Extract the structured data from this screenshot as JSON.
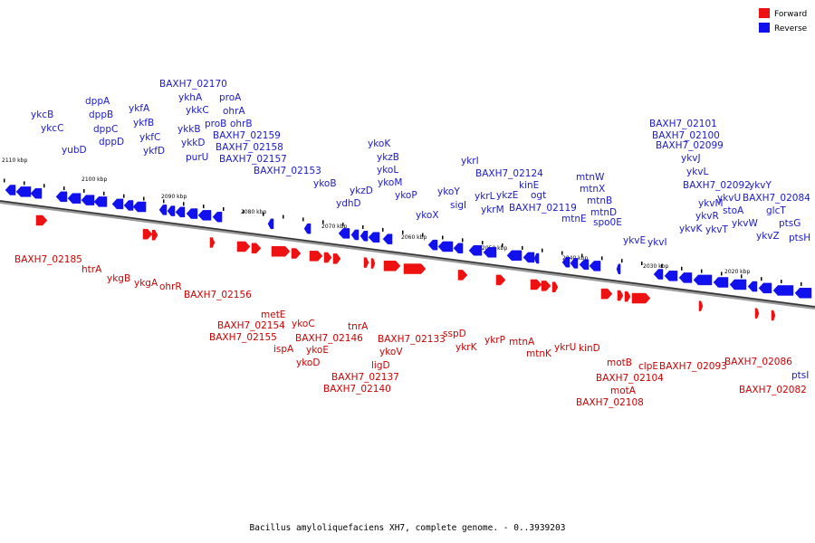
{
  "legend": {
    "forward": {
      "label": "Forward",
      "color": "#ee1111"
    },
    "reverse": {
      "label": "Reverse",
      "color": "#1111ee"
    }
  },
  "caption": "Bacillus amyloliquefaciens XH7, complete genome. - 0..3939203",
  "scale_labels": [
    "2110 kbp",
    "2100 kbp",
    "2090 kbp",
    "2080 kbp",
    "2070 kbp",
    "2060 kbp",
    "2050 kbp",
    "2040 kbp",
    "2030 kbp",
    "2020 kbp"
  ],
  "reverse_labels": [
    "ykcB",
    "ykcC",
    "yubD",
    "dppA",
    "dppB",
    "dppC",
    "dppD",
    "ykfA",
    "ykfB",
    "ykfC",
    "ykfD",
    "BAXH7_02170",
    "ykhA",
    "ykkC",
    "ykkB",
    "ykkD",
    "purU",
    "proA",
    "ohrA",
    "proB",
    "ohrB",
    "BAXH7_02159",
    "BAXH7_02158",
    "BAXH7_02157",
    "BAXH7_02153",
    "ykoB",
    "ykzD",
    "ydhD",
    "ykoK",
    "ykzB",
    "ykoL",
    "ykoM",
    "ykoP",
    "ykoX",
    "ykoY",
    "sigI",
    "ykrI",
    "ykrL",
    "ykrM",
    "BAXH7_02124",
    "ykzE",
    "kinE",
    "ogt",
    "BAXH7_02119",
    "mtnW",
    "mtnX",
    "mtnB",
    "mtnD",
    "mtnE",
    "spo0E",
    "ykvE",
    "ykvI",
    "BAXH7_02101",
    "BAXH7_02100",
    "BAXH7_02099",
    "ykvJ",
    "ykvL",
    "BAXH7_02092",
    "ykvM",
    "ykvU",
    "ykvR",
    "ykvK",
    "ykvT",
    "stoA",
    "ykvW",
    "ykvY",
    "BAXH7_02084",
    "ykvZ",
    "glcT",
    "ptsG",
    "ptsH",
    "ptsI"
  ],
  "forward_labels": [
    "BAXH7_02185",
    "htrA",
    "ykgB",
    "ykgA",
    "ohrR",
    "BAXH7_02156",
    "metE",
    "BAXH7_02154",
    "BAXH7_02155",
    "ispA",
    "ykoC",
    "BAXH7_02146",
    "ykoE",
    "ykoD",
    "tnrA",
    "BAXH7_02137",
    "BAXH7_02140",
    "ligD",
    "ykoV",
    "BAXH7_02133",
    "sspD",
    "ykrK",
    "ykrP",
    "mtnA",
    "mtnK",
    "ykrU",
    "kinD",
    "motB",
    "BAXH7_02104",
    "motA",
    "BAXH7_02108",
    "clpE",
    "BAXH7_02093",
    "BAXH7_02086",
    "BAXH7_02082"
  ]
}
